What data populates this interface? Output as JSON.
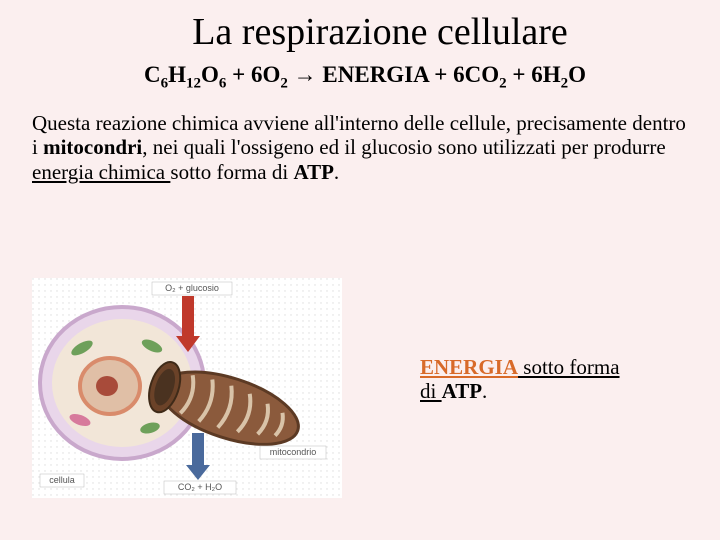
{
  "title": "La respirazione cellulare",
  "formula": {
    "parts": [
      {
        "t": "C"
      },
      {
        "t": "6",
        "sub": true
      },
      {
        "t": "H"
      },
      {
        "t": "12",
        "sub": true
      },
      {
        "t": "O"
      },
      {
        "t": "6",
        "sub": true
      },
      {
        "t": " + 6O"
      },
      {
        "t": "2",
        "sub": true
      },
      {
        "t": " → ENERGIA + 6CO"
      },
      {
        "t": "2",
        "sub": true
      },
      {
        "t": " + 6H"
      },
      {
        "t": "2",
        "sub": true
      },
      {
        "t": "O"
      }
    ]
  },
  "body": {
    "pre": "Questa reazione chimica avviene all'interno delle cellule, precisamente dentro i ",
    "bold1": "mitocondri",
    "mid": ", nei quali l'ossigeno ed il glucosio sono utilizzati per produrre ",
    "underlined": "energia chimica ",
    "post1": "sotto forma di ",
    "atp": "ATP",
    "post2": "."
  },
  "side": {
    "energia": "ENERGIA",
    "rest1": " sotto forma di ",
    "atp": "ATP",
    "rest2": "."
  },
  "diagram": {
    "background": "#ffffff",
    "grid_color": "#dcdcdc",
    "cell": {
      "outer_fill": "#e9d6ea",
      "outer_stroke": "#c9a8cc",
      "inner_fill": "#f2e6d8",
      "nucleus_outer": "#d98b6b",
      "nucleus_inner": "#e0bfa6",
      "nucleolus": "#a84b3a",
      "organelle_green": "#6ea05a",
      "organelle_pink": "#d77a9c"
    },
    "mito": {
      "outer_fill": "#8b5a3c",
      "outer_stroke": "#5c3a24",
      "cristae": "#d9c3a8",
      "end_fill": "#6b4228"
    },
    "arrow_in": {
      "color": "#c0392b",
      "label": "O₂ + glucosio"
    },
    "arrow_out": {
      "color": "#4a6a9c",
      "label": "CO₂ + H₂O"
    },
    "label_cell": "cellula",
    "label_mito": "mitocondrio"
  },
  "colors": {
    "page_bg": "#fbefef",
    "text": "#000000",
    "energia_text": "#d86a29"
  }
}
